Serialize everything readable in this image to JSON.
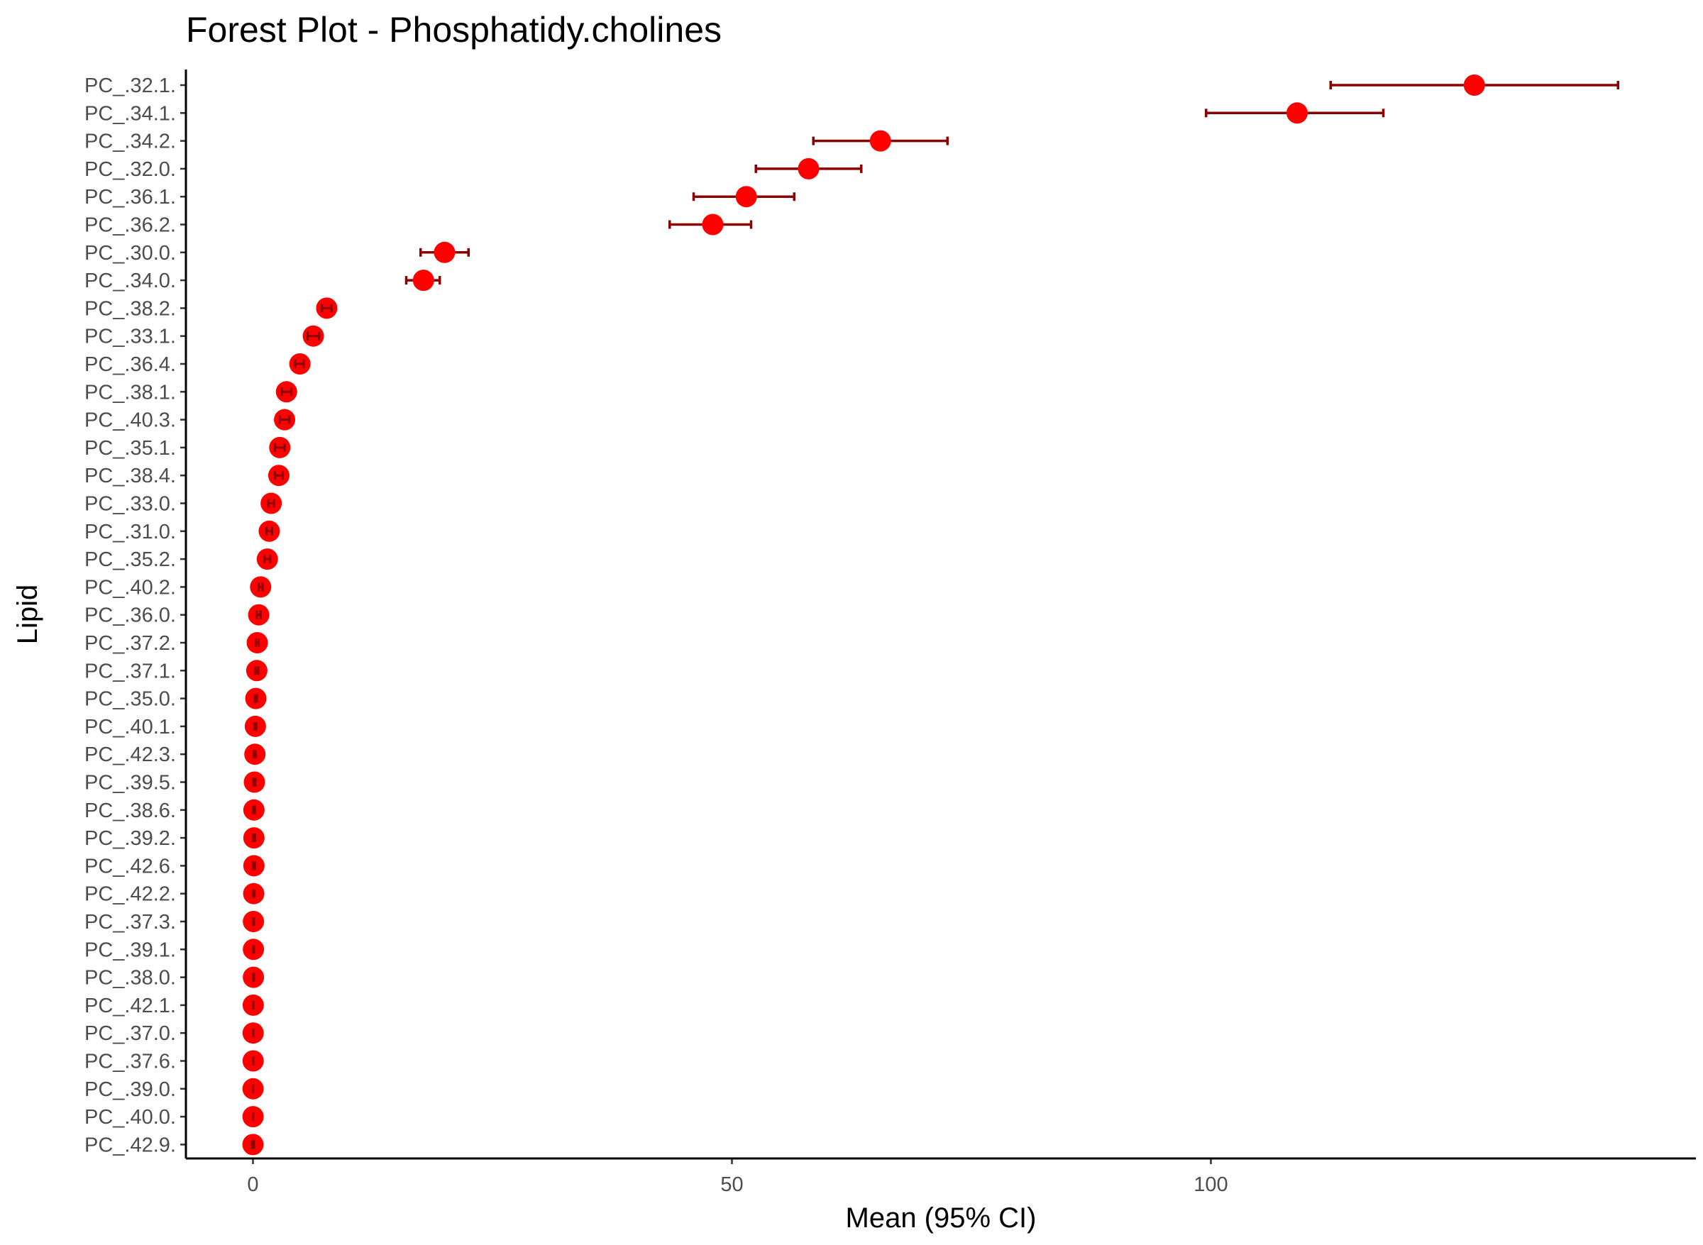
{
  "chart_data": {
    "type": "scatter",
    "subtype": "forest-plot",
    "title": "Forest Plot - Phosphatidy.cholines",
    "xlabel": "Mean (95% CI)",
    "ylabel": "Lipid",
    "xlim": [
      -7,
      150
    ],
    "xticks": [
      0,
      50,
      100
    ],
    "grid": false,
    "legend": "none",
    "point_color": "#ff0000",
    "errorbar_color": "#8b0000",
    "categories": [
      "PC_.32.1.",
      "PC_.34.1.",
      "PC_.34.2.",
      "PC_.32.0.",
      "PC_.36.1.",
      "PC_.36.2.",
      "PC_.30.0.",
      "PC_.34.0.",
      "PC_.38.2.",
      "PC_.33.1.",
      "PC_.36.4.",
      "PC_.38.1.",
      "PC_.40.3.",
      "PC_.35.1.",
      "PC_.38.4.",
      "PC_.33.0.",
      "PC_.31.0.",
      "PC_.35.2.",
      "PC_.40.2.",
      "PC_.36.0.",
      "PC_.37.2.",
      "PC_.37.1.",
      "PC_.35.0.",
      "PC_.40.1.",
      "PC_.42.3.",
      "PC_.39.5.",
      "PC_.38.6.",
      "PC_.39.2.",
      "PC_.42.6.",
      "PC_.42.2.",
      "PC_.37.3.",
      "PC_.39.1.",
      "PC_.38.0.",
      "PC_.42.1.",
      "PC_.37.0.",
      "PC_.37.6.",
      "PC_.39.0.",
      "PC_.40.0.",
      "PC_.42.9."
    ],
    "mean": [
      127.5,
      109,
      65.5,
      58,
      51.5,
      48,
      20,
      17.8,
      7.7,
      6.3,
      4.9,
      3.5,
      3.3,
      2.8,
      2.7,
      1.9,
      1.7,
      1.5,
      0.8,
      0.6,
      0.45,
      0.4,
      0.3,
      0.25,
      0.2,
      0.15,
      0.1,
      0.1,
      0.1,
      0.08,
      0.05,
      0.05,
      0.05,
      0.03,
      0.02,
      0.02,
      0.01,
      0.01,
      0.0
    ],
    "lower": [
      112.5,
      99.5,
      58.5,
      52.5,
      46,
      43.5,
      17.5,
      16,
      7.2,
      5.7,
      4.4,
      3.0,
      2.8,
      2.3,
      2.3,
      1.6,
      1.4,
      1.2,
      0.6,
      0.4,
      0.3,
      0.25,
      0.2,
      0.15,
      0.1,
      0.05,
      0.0,
      0.0,
      0.0,
      0.0,
      0.0,
      0.0,
      0.0,
      0.0,
      0.0,
      0.0,
      0.0,
      0.0,
      -0.1
    ],
    "upper": [
      142.5,
      118,
      72.5,
      63.5,
      56.5,
      52,
      22.5,
      19.5,
      8.2,
      6.9,
      5.3,
      4.0,
      3.8,
      3.3,
      3.1,
      2.2,
      2.0,
      1.8,
      1.0,
      0.8,
      0.6,
      0.55,
      0.4,
      0.35,
      0.3,
      0.25,
      0.2,
      0.2,
      0.2,
      0.16,
      0.1,
      0.1,
      0.1,
      0.06,
      0.04,
      0.04,
      0.02,
      0.02,
      0.1
    ]
  }
}
